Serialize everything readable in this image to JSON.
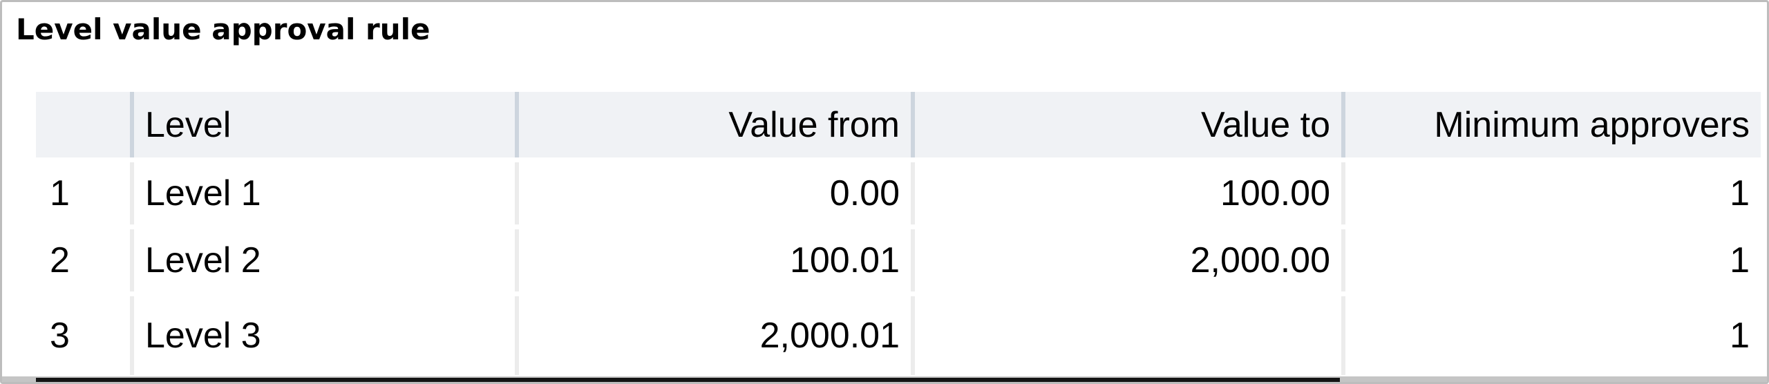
{
  "panel": {
    "title": "Level value approval rule"
  },
  "table": {
    "columns": [
      {
        "key": "num",
        "label": ""
      },
      {
        "key": "level",
        "label": "Level"
      },
      {
        "key": "value_from",
        "label": "Value from"
      },
      {
        "key": "value_to",
        "label": "Value to"
      },
      {
        "key": "min_approvers",
        "label": "Minimum approvers"
      }
    ],
    "rows": [
      {
        "num": "1",
        "level": "Level 1",
        "value_from": "0.00",
        "value_to": "100.00",
        "min_approvers": "1"
      },
      {
        "num": "2",
        "level": "Level 2",
        "value_from": "100.01",
        "value_to": "2,000.00",
        "min_approvers": "1"
      },
      {
        "num": "3",
        "level": "Level 3",
        "value_from": "2,000.01",
        "value_to": "",
        "min_approvers": "1"
      }
    ]
  },
  "colors": {
    "outer_border": "#bdbdbd",
    "header_background": "#f0f2f5",
    "header_divider": "#cdd5de",
    "row_separator": "#ececec",
    "cell_background": "#ffffff",
    "text": "#000000",
    "scrollbar_track": "#c5c5c5",
    "scrollbar_thumb": "#141414"
  }
}
